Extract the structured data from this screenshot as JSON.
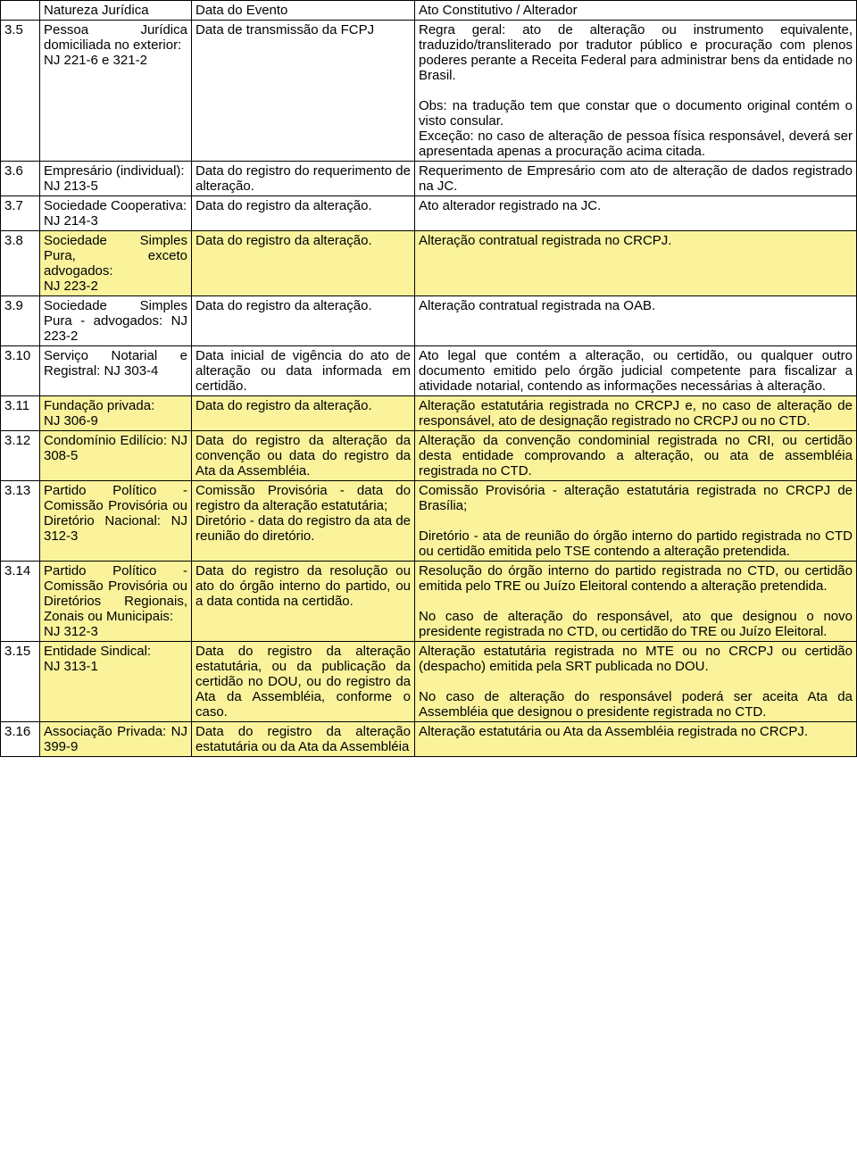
{
  "headers": {
    "col_nat": "Natureza Jurídica",
    "col_evt": "Data do Evento",
    "col_ato": "Ato Constitutivo / Alterador"
  },
  "highlight_color": "#faf39c",
  "rows": [
    {
      "num": "3.5",
      "nat": "Pessoa Jurídica domiciliada no exterior:\nNJ 221-6 e 321-2",
      "evt": "Data de transmissão da FCPJ",
      "ato": "Regra geral: ato de alteração ou instrumento equivalente, traduzido/transliterado por tradutor público e procuração com plenos poderes perante a Receita Federal  para administrar bens da entidade no Brasil.\n\nObs: na tradução tem que constar que o documento original contém o visto consular.\nExceção: no caso de alteração de pessoa física responsável, deverá ser apresentada apenas a procuração acima citada.",
      "hl": false
    },
    {
      "num": "3.6",
      "nat": "Empresário (individual):\nNJ 213-5",
      "evt": "Data do registro do requerimento de alteração.",
      "ato": "Requerimento de Empresário com ato de alteração de dados registrado na JC.",
      "hl": false
    },
    {
      "num": "3.7",
      "nat": "Sociedade Cooperativa:\nNJ 214-3",
      "evt": "Data do registro da alteração.",
      "ato": "Ato alterador registrado na JC.",
      "hl": false
    },
    {
      "num": "3.8",
      "nat": "Sociedade Simples Pura, exceto advogados:\nNJ 223-2",
      "evt": "Data do registro da alteração.",
      "ato": "Alteração contratual registrada no CRCPJ.",
      "hl": true
    },
    {
      "num": "3.9",
      "nat": "Sociedade Simples Pura - advogados: NJ 223-2",
      "evt": "Data do registro da alteração.",
      "ato": "Alteração contratual registrada na OAB.",
      "hl": false
    },
    {
      "num": "3.10",
      "nat": "Serviço Notarial e Registral: NJ 303-4",
      "evt": "Data inicial de vigência do ato de alteração ou data informada em certidão.",
      "ato": "Ato legal que contém a alteração, ou certidão, ou qualquer outro documento emitido pelo órgão judicial competente para fiscalizar a atividade notarial, contendo as informações necessárias à alteração.",
      "hl": false
    },
    {
      "num": "3.11",
      "nat": "Fundação privada:\nNJ 306-9",
      "evt": "Data do registro da alteração.",
      "ato": "Alteração estatutária registrada no CRCPJ e, no caso de alteração de responsável, ato de designação registrado no CRCPJ ou no CTD.",
      "hl": true
    },
    {
      "num": "3.12",
      "nat": "Condomínio Edilício: NJ 308-5",
      "evt": "Data do registro da alteração da convenção ou data do registro da Ata da Assembléia.",
      "ato": "Alteração da convenção condominial registrada no CRI, ou certidão desta entidade comprovando a alteração, ou ata de assembléia registrada no CTD.",
      "hl": true
    },
    {
      "num": "3.13",
      "nat": "Partido Político - Comissão Provisória ou Diretório Nacional: NJ 312-3",
      "evt": "Comissão Provisória - data do registro da alteração estatutária;\nDiretório - data do registro da ata de reunião do diretório.",
      "ato": "Comissão Provisória - alteração estatutária registrada no CRCPJ de Brasília;\n\nDiretório - ata de reunião do órgão interno do partido registrada no CTD ou certidão emitida pelo TSE contendo a alteração pretendida.",
      "hl": true
    },
    {
      "num": "3.14",
      "nat": "Partido Político - Comissão Provisória ou Diretórios Regionais, Zonais ou Municipais:\nNJ 312-3",
      "evt": "Data do registro da resolução ou ato do órgão interno do partido, ou a data contida na certidão.",
      "ato": "Resolução do órgão interno do partido registrada no CTD, ou certidão emitida pelo TRE ou Juízo Eleitoral contendo a alteração pretendida.\n\nNo caso de alteração do responsável, ato que designou o novo presidente registrada no CTD, ou certidão do TRE ou Juízo Eleitoral.",
      "hl": true
    },
    {
      "num": "3.15",
      "nat": "Entidade Sindical:\nNJ 313-1",
      "evt": "Data do registro da alteração estatutária, ou da publicação da certidão no DOU, ou do registro da Ata da Assembléia, conforme o caso.",
      "ato": "Alteração estatutária registrada no MTE ou no CRCPJ ou certidão (despacho) emitida pela SRT publicada no DOU.\n\nNo caso de alteração do responsável poderá ser aceita Ata da Assembléia que designou o presidente registrada no CTD.",
      "hl": true
    },
    {
      "num": "3.16",
      "nat": "Associação Privada: NJ 399-9",
      "evt": "Data do registro da alteração estatutária ou da Ata da Assembléia",
      "ato": "Alteração estatutária ou Ata da Assembléia registrada no CRCPJ.",
      "hl": true
    }
  ]
}
